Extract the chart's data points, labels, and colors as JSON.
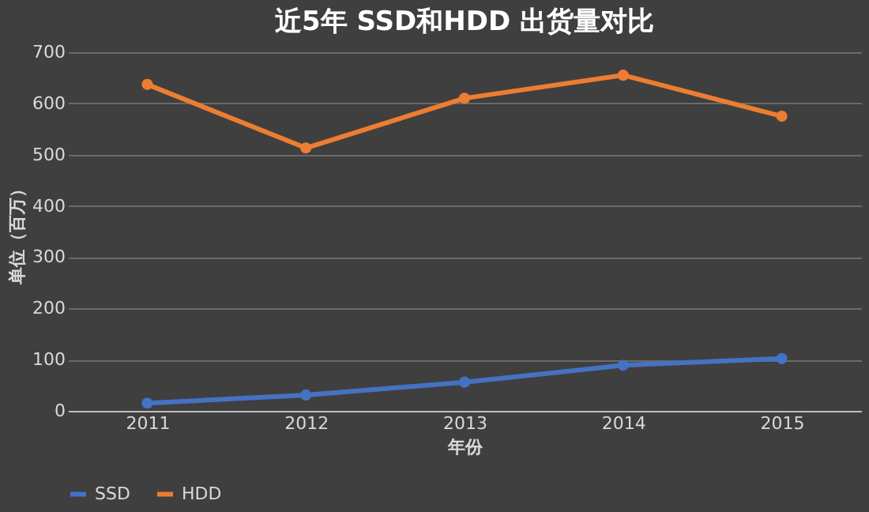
{
  "chart_data": {
    "type": "line",
    "title": "近5年 SSD和HDD 出货量对比",
    "xlabel": "年份",
    "ylabel": "单位（百万）",
    "categories": [
      "2011",
      "2012",
      "2013",
      "2014",
      "2015"
    ],
    "series": [
      {
        "name": "SSD",
        "color": "#4472c4",
        "values": [
          15,
          31,
          56,
          89,
          102
        ]
      },
      {
        "name": "HDD",
        "color": "#ed7d31",
        "values": [
          637,
          513,
          610,
          655,
          575
        ]
      }
    ],
    "ylim": [
      0,
      700
    ],
    "yticks": [
      0,
      100,
      200,
      300,
      400,
      500,
      600,
      700
    ],
    "grid": "y",
    "legend": "bottom",
    "marker": "circle",
    "line_style": "solid"
  }
}
